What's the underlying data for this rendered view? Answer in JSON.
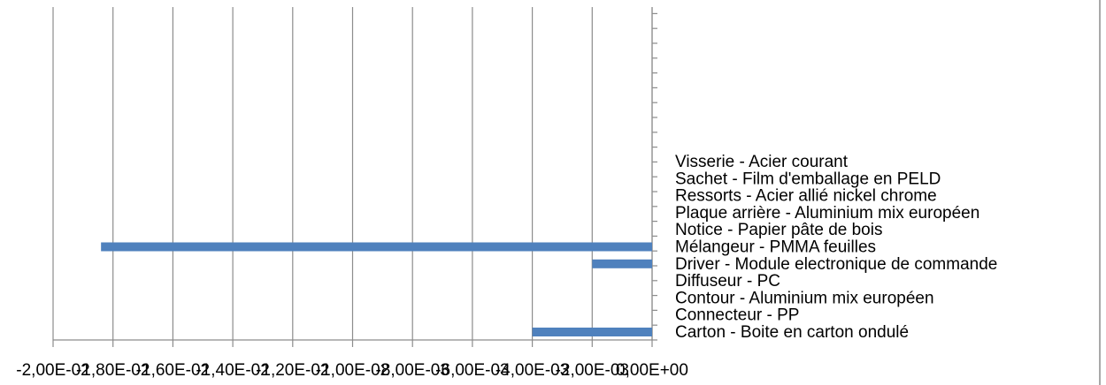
{
  "chart_data": {
    "type": "bar",
    "orientation": "horizontal",
    "title": "",
    "xlabel": "",
    "ylabel": "",
    "xlim": [
      -0.02,
      0
    ],
    "grid": true,
    "legend": "none",
    "bar_color": "#4F81BD",
    "categories": [
      "Carton - Boite en carton ondulé",
      "Connecteur - PP",
      "Contour - Aluminium mix européen",
      "Diffuseur - PC",
      "Driver - Module electronique de commande",
      "Mélangeur - PMMA feuilles",
      "Notice - Papier pâte de bois",
      "Plaque arrière - Aluminium mix européen",
      "Ressorts - Acier allié nickel chrome",
      "Sachet - Film d'emballage en PELD",
      "Visserie - Acier courant"
    ],
    "values": [
      -0.004,
      0,
      0,
      0,
      -0.002,
      -0.0184,
      0,
      0,
      0,
      0,
      0
    ],
    "x_tick_labels": [
      "-2,00E-02",
      "-1,80E-02",
      "-1,60E-02",
      "-1,40E-02",
      "-1,20E-02",
      "-1,00E-02",
      "-8,00E-03",
      "-6,00E-03",
      "-4,00E-03",
      "-2,00E-03",
      "0,00E+00"
    ]
  }
}
